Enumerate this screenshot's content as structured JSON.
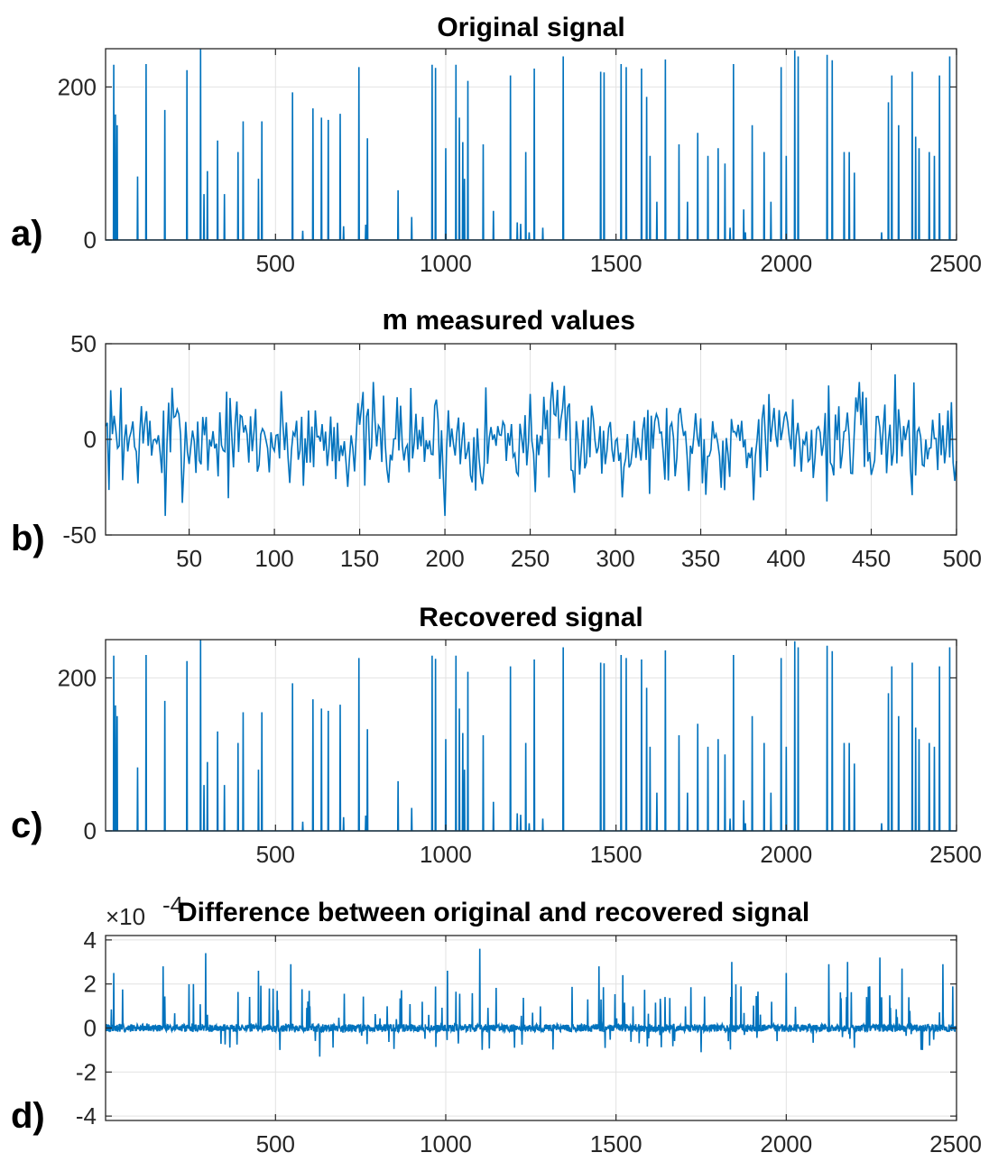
{
  "chart_data": [
    {
      "type": "line",
      "panel_label": "a)",
      "title": "Original signal",
      "xlim": [
        1,
        2500
      ],
      "ylim": [
        0,
        250
      ],
      "xticks": [
        500,
        1000,
        1500,
        2000,
        2500
      ],
      "xtick_labels": [
        "500",
        "1000",
        "1500",
        "2000",
        "2500"
      ],
      "yticks": [
        0,
        200
      ],
      "ytick_labels": [
        "0",
        "200"
      ],
      "grid": true,
      "color": "#0072BD",
      "spikes": [
        [
          25,
          229
        ],
        [
          30,
          164
        ],
        [
          35,
          150
        ],
        [
          95,
          83
        ],
        [
          120,
          230
        ],
        [
          175,
          170
        ],
        [
          240,
          222
        ],
        [
          280,
          250
        ],
        [
          290,
          60
        ],
        [
          300,
          90
        ],
        [
          330,
          130
        ],
        [
          350,
          60
        ],
        [
          390,
          115
        ],
        [
          405,
          155
        ],
        [
          450,
          80
        ],
        [
          460,
          155
        ],
        [
          550,
          193
        ],
        [
          580,
          12
        ],
        [
          610,
          172
        ],
        [
          635,
          160
        ],
        [
          655,
          157
        ],
        [
          690,
          165
        ],
        [
          700,
          18
        ],
        [
          745,
          226
        ],
        [
          765,
          20
        ],
        [
          770,
          133
        ],
        [
          860,
          65
        ],
        [
          900,
          30
        ],
        [
          960,
          229
        ],
        [
          970,
          225
        ],
        [
          1000,
          120
        ],
        [
          1030,
          229
        ],
        [
          1040,
          160
        ],
        [
          1050,
          128
        ],
        [
          1055,
          80
        ],
        [
          1065,
          208
        ],
        [
          1110,
          125
        ],
        [
          1140,
          38
        ],
        [
          1190,
          215
        ],
        [
          1210,
          23
        ],
        [
          1220,
          21
        ],
        [
          1235,
          115
        ],
        [
          1245,
          10
        ],
        [
          1260,
          224
        ],
        [
          1285,
          16
        ],
        [
          1345,
          240
        ],
        [
          1455,
          220
        ],
        [
          1465,
          219
        ],
        [
          1515,
          230
        ],
        [
          1530,
          226
        ],
        [
          1575,
          224
        ],
        [
          1590,
          187
        ],
        [
          1600,
          110
        ],
        [
          1620,
          50
        ],
        [
          1645,
          236
        ],
        [
          1685,
          125
        ],
        [
          1710,
          50
        ],
        [
          1740,
          140
        ],
        [
          1770,
          110
        ],
        [
          1800,
          120
        ],
        [
          1820,
          100
        ],
        [
          1835,
          16
        ],
        [
          1845,
          230
        ],
        [
          1875,
          40
        ],
        [
          1880,
          10
        ],
        [
          1900,
          150
        ],
        [
          1935,
          115
        ],
        [
          1955,
          50
        ],
        [
          1985,
          226
        ],
        [
          2000,
          110
        ],
        [
          2025,
          248
        ],
        [
          2035,
          240
        ],
        [
          2120,
          242
        ],
        [
          2135,
          235
        ],
        [
          2170,
          115
        ],
        [
          2185,
          115
        ],
        [
          2200,
          88
        ],
        [
          2280,
          10
        ],
        [
          2300,
          180
        ],
        [
          2310,
          215
        ],
        [
          2330,
          150
        ],
        [
          2370,
          220
        ],
        [
          2380,
          135
        ],
        [
          2390,
          120
        ],
        [
          2420,
          115
        ],
        [
          2435,
          110
        ],
        [
          2450,
          215
        ],
        [
          2480,
          240
        ]
      ]
    },
    {
      "type": "line",
      "panel_label": "b)",
      "title_prefix": "m",
      "title": "measured values",
      "xlim": [
        1,
        500
      ],
      "ylim": [
        -50,
        50
      ],
      "xticks": [
        50,
        100,
        150,
        200,
        250,
        300,
        350,
        400,
        450,
        500
      ],
      "xtick_labels": [
        "50",
        "100",
        "150",
        "200",
        "250",
        "300",
        "350",
        "400",
        "450",
        "500"
      ],
      "yticks": [
        -50,
        0,
        50
      ],
      "ytick_labels": [
        "-50",
        "0",
        "50"
      ],
      "grid": true,
      "color": "#0072BD",
      "n_points": 500,
      "value_range": [
        -40,
        34
      ]
    },
    {
      "type": "line",
      "panel_label": "c)",
      "title": "Recovered signal",
      "xlim": [
        1,
        2500
      ],
      "ylim": [
        0,
        250
      ],
      "xticks": [
        500,
        1000,
        1500,
        2000,
        2500
      ],
      "xtick_labels": [
        "500",
        "1000",
        "1500",
        "2000",
        "2500"
      ],
      "yticks": [
        0,
        200
      ],
      "ytick_labels": [
        "0",
        "200"
      ],
      "grid": true,
      "color": "#0072BD",
      "note_same_as": "Original signal"
    },
    {
      "type": "line",
      "panel_label": "d)",
      "title": "Difference between original and recovered signal",
      "exponent_label": "×10",
      "exponent_power": "-4",
      "xlim": [
        1,
        2500
      ],
      "ylim": [
        -4.2,
        4.2
      ],
      "xticks": [
        500,
        1000,
        1500,
        2000,
        2500
      ],
      "xtick_labels": [
        "500",
        "1000",
        "1500",
        "2000",
        "2500"
      ],
      "yticks": [
        -4,
        -2,
        0,
        2,
        4
      ],
      "ytick_labels": [
        "-4",
        "-2",
        "0",
        "2",
        "4"
      ],
      "grid": true,
      "color": "#0072BD",
      "n_points": 2500,
      "value_range": [
        -1.3,
        3.6
      ]
    }
  ]
}
